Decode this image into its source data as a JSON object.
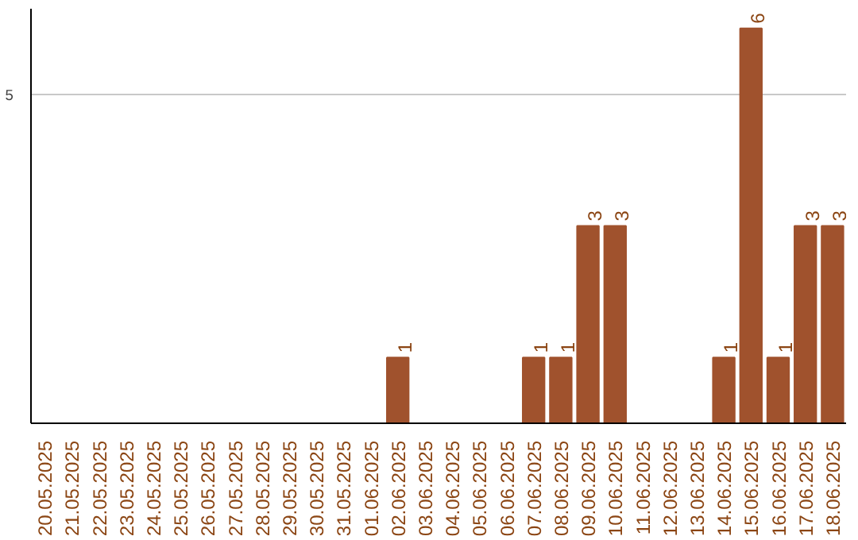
{
  "chart_data": {
    "type": "bar",
    "categories": [
      "20.05.2025",
      "21.05.2025",
      "22.05.2025",
      "23.05.2025",
      "24.05.2025",
      "25.05.2025",
      "26.05.2025",
      "27.05.2025",
      "28.05.2025",
      "29.05.2025",
      "30.05.2025",
      "31.05.2025",
      "01.06.2025",
      "02.06.2025",
      "03.06.2025",
      "04.06.2025",
      "05.06.2025",
      "06.06.2025",
      "07.06.2025",
      "08.06.2025",
      "09.06.2025",
      "10.06.2025",
      "11.06.2025",
      "12.06.2025",
      "13.06.2025",
      "14.06.2025",
      "15.06.2025",
      "16.06.2025",
      "17.06.2025",
      "18.06.2025"
    ],
    "values": [
      null,
      null,
      null,
      null,
      null,
      null,
      null,
      null,
      null,
      null,
      null,
      null,
      null,
      1,
      null,
      null,
      null,
      null,
      1,
      1,
      3,
      3,
      null,
      null,
      null,
      1,
      6,
      1,
      3,
      3
    ],
    "data_labels": true,
    "color": "#a0522d",
    "ylim": [
      0,
      6.3
    ],
    "yticks": [
      5
    ],
    "grid": "y"
  }
}
